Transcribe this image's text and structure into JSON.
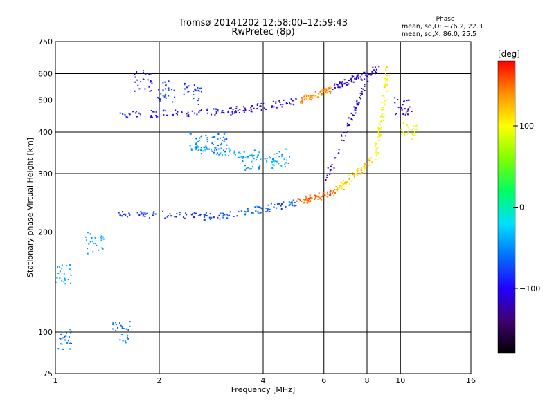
{
  "header": {
    "title": "Tromsø 20141202 12:58:00–12:59:43",
    "subtitle": "RwPretec (8p)",
    "stats_title": "Phase",
    "stats_o": "mean, sd,O: −76.2, 22.3",
    "stats_x": "mean, sd,X:  86.0, 25.5"
  },
  "chart_data": {
    "type": "scatter",
    "xlabel": "Frequency [MHz]",
    "ylabel": "Stationary phase Virtual Height [km]",
    "x_scale": "log",
    "y_scale": "log",
    "xlim": [
      1,
      16
    ],
    "ylim": [
      75,
      750
    ],
    "x_ticks": [
      1,
      2,
      4,
      6,
      8,
      10,
      16
    ],
    "y_ticks": [
      75,
      100,
      200,
      300,
      400,
      500,
      600,
      750
    ],
    "x_grid_lines": [
      2,
      4,
      6,
      8,
      10
    ],
    "y_grid_lines": [
      100,
      200,
      300,
      400,
      500,
      600
    ],
    "grid": true,
    "colorbar": {
      "label": "[deg]",
      "min": -180,
      "max": 180,
      "ticks": [
        100,
        0,
        -100
      ],
      "colors": [
        "#000000",
        "#400070",
        "#2200ff",
        "#0070ff",
        "#00e0ff",
        "#00ff60",
        "#80ff00",
        "#ffff00",
        "#ff9000",
        "#ff0000"
      ],
      "legend_position": "right"
    },
    "traces": [
      {
        "x_start": 1.55,
        "x_end": 3.2,
        "height_start": 450,
        "height_end": 462,
        "phase": -95
      },
      {
        "x_start": 3.2,
        "x_end": 5.0,
        "height_start": 462,
        "height_end": 495,
        "phase": -105
      },
      {
        "x_start": 5.0,
        "x_end": 6.3,
        "height_start": 495,
        "height_end": 540,
        "phase": 140
      },
      {
        "x_start": 6.3,
        "x_end": 8.6,
        "height_start": 540,
        "height_end": 620,
        "phase": -110
      },
      {
        "x_start": 1.5,
        "x_end": 3.0,
        "height_start": 228,
        "height_end": 222,
        "phase": -85
      },
      {
        "x_start": 3.0,
        "x_end": 5.0,
        "height_start": 222,
        "height_end": 245,
        "phase": -70
      },
      {
        "x_start": 5.0,
        "x_end": 6.5,
        "height_start": 245,
        "height_end": 265,
        "phase": 150
      },
      {
        "x_start": 6.5,
        "x_end": 8.5,
        "height_start": 265,
        "height_end": 340,
        "phase": 115
      },
      {
        "x_start": 8.5,
        "x_end": 9.2,
        "height_start": 340,
        "height_end": 620,
        "phase": 100
      },
      {
        "x_start": 6.0,
        "x_end": 8.2,
        "height_start": 280,
        "height_end": 600,
        "phase": -110
      },
      {
        "x_start": 2.5,
        "x_end": 4.3,
        "height_start": 360,
        "height_end": 330,
        "phase": -40
      }
    ],
    "clusters": [
      {
        "x": 1.05,
        "height": 95,
        "phase": -60
      },
      {
        "x": 1.05,
        "height": 150,
        "phase": -40
      },
      {
        "x": 1.3,
        "height": 185,
        "phase": -40
      },
      {
        "x": 1.55,
        "height": 100,
        "phase": -60
      },
      {
        "x": 1.8,
        "height": 570,
        "phase": -95
      },
      {
        "x": 2.1,
        "height": 530,
        "phase": -80
      },
      {
        "x": 2.5,
        "height": 520,
        "phase": -80
      },
      {
        "x": 2.6,
        "height": 370,
        "phase": -55
      },
      {
        "x": 3.0,
        "height": 370,
        "phase": -60
      },
      {
        "x": 3.7,
        "height": 330,
        "phase": -45
      },
      {
        "x": 4.5,
        "height": 330,
        "phase": -40
      },
      {
        "x": 10.2,
        "height": 480,
        "phase": -100
      },
      {
        "x": 10.5,
        "height": 400,
        "phase": 100
      }
    ]
  }
}
